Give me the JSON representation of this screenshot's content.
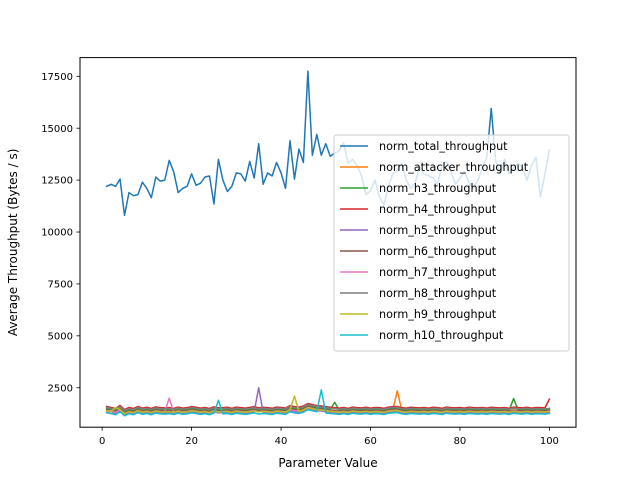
{
  "chart_data": {
    "type": "line",
    "title": "",
    "xlabel": "Parameter Value",
    "ylabel": "Average Throughput (Bytes / s)",
    "xlim": [
      -4.95,
      105.95
    ],
    "ylim": [
      600,
      18400
    ],
    "x_ticks": [
      0,
      20,
      40,
      60,
      80,
      100
    ],
    "y_ticks": [
      2500,
      5000,
      7500,
      10000,
      12500,
      15000,
      17500
    ],
    "x_tick_labels": [
      "0",
      "20",
      "40",
      "60",
      "80",
      "100"
    ],
    "y_tick_labels": [
      "2500",
      "5000",
      "7500",
      "10000",
      "12500",
      "15000",
      "17500"
    ],
    "grid": false,
    "legend_position": "center-right",
    "x": [
      1,
      2,
      3,
      4,
      5,
      6,
      7,
      8,
      9,
      10,
      11,
      12,
      13,
      14,
      15,
      16,
      17,
      18,
      19,
      20,
      21,
      22,
      23,
      24,
      25,
      26,
      27,
      28,
      29,
      30,
      31,
      32,
      33,
      34,
      35,
      36,
      37,
      38,
      39,
      40,
      41,
      42,
      43,
      44,
      45,
      46,
      47,
      48,
      49,
      50,
      51,
      52,
      53,
      54,
      55,
      56,
      57,
      58,
      59,
      60,
      61,
      62,
      63,
      64,
      65,
      66,
      67,
      68,
      69,
      70,
      71,
      72,
      73,
      74,
      75,
      76,
      77,
      78,
      79,
      80,
      81,
      82,
      83,
      84,
      85,
      86,
      87,
      88,
      89,
      90,
      91,
      92,
      93,
      94,
      95,
      96,
      97,
      98,
      99,
      100
    ],
    "series": [
      {
        "name": "norm_total_throughput",
        "color": "#1f77b4",
        "values": [
          12200,
          12300,
          12200,
          12550,
          10800,
          11900,
          11750,
          11800,
          12400,
          12100,
          11650,
          12650,
          12450,
          12500,
          13450,
          12900,
          11900,
          12100,
          12200,
          12800,
          12250,
          12350,
          12650,
          12700,
          11350,
          13500,
          12500,
          11950,
          12200,
          12850,
          12800,
          12450,
          13400,
          12600,
          14250,
          12300,
          12850,
          12700,
          13350,
          12850,
          12100,
          14400,
          12550,
          14000,
          13350,
          17750,
          13700,
          14700,
          13700,
          14250,
          13650,
          13800,
          13900,
          14300,
          13300,
          13500,
          13200,
          12700,
          11800,
          12000,
          12500,
          11700,
          11300,
          12200,
          12800,
          12950,
          13300,
          12500,
          12100,
          12400,
          13100,
          12800,
          12700,
          12600,
          12300,
          13200,
          13400,
          12900,
          12300,
          12600,
          12900,
          12400,
          12100,
          12500,
          13100,
          13600,
          15950,
          13400,
          12800,
          13500,
          12800,
          13100,
          13300,
          13100,
          12500,
          13200,
          13600,
          11700,
          12800,
          13950
        ]
      },
      {
        "name": "norm_attacker_throughput",
        "color": "#ff7f0e",
        "values": [
          1400,
          1450,
          1350,
          1500,
          1300,
          1400,
          1350,
          1450,
          1380,
          1420,
          1360,
          1440,
          1400,
          1390,
          1410,
          1370,
          1430,
          1380,
          1400,
          1450,
          1420,
          1380,
          1410,
          1360,
          1440,
          1390,
          1400,
          1420,
          1370,
          1430,
          1400,
          1380,
          1410,
          1450,
          1390,
          1420,
          1400,
          1370,
          1430,
          1410,
          1380,
          1500,
          1450,
          1420,
          1480,
          1600,
          1550,
          1500,
          1480,
          1450,
          1420,
          1400,
          1380,
          1410,
          1370,
          1430,
          1400,
          1390,
          1420,
          1380,
          1410,
          1400,
          1370,
          1430,
          1450,
          2350,
          1400,
          1380,
          1420,
          1400,
          1390,
          1410,
          1380,
          1420,
          1400,
          1370,
          1430,
          1400,
          1390,
          1410,
          1380,
          1420,
          1400,
          1390,
          1410,
          1380,
          1420,
          1400,
          1390,
          1410,
          1370,
          1430,
          1400,
          1390,
          1420,
          1380,
          1410,
          1400,
          1390,
          1420
        ]
      },
      {
        "name": "norm_h3_throughput",
        "color": "#2ca02c",
        "values": [
          1500,
          1450,
          1400,
          1550,
          1350,
          1450,
          1400,
          1500,
          1420,
          1460,
          1400,
          1480,
          1440,
          1430,
          1450,
          1410,
          1470,
          1420,
          1440,
          1490,
          1460,
          1420,
          1450,
          1400,
          1480,
          1430,
          1440,
          1460,
          1410,
          1470,
          1440,
          1420,
          1450,
          1490,
          1430,
          1460,
          1440,
          1410,
          1470,
          1450,
          1420,
          1540,
          1490,
          1460,
          1520,
          1640,
          1590,
          1540,
          1520,
          1490,
          1460,
          1800,
          1420,
          1450,
          1410,
          1470,
          1440,
          1430,
          1460,
          1420,
          1450,
          1440,
          1410,
          1470,
          1490,
          1500,
          1440,
          1420,
          1460,
          1440,
          1430,
          1450,
          1420,
          1460,
          1440,
          1410,
          1470,
          1440,
          1430,
          1450,
          1420,
          1460,
          1440,
          1430,
          1450,
          1420,
          1460,
          1440,
          1430,
          1450,
          1410,
          1980,
          1440,
          1430,
          1460,
          1420,
          1450,
          1440,
          1430,
          1460
        ]
      },
      {
        "name": "norm_h4_throughput",
        "color": "#d62728",
        "values": [
          1600,
          1550,
          1500,
          1650,
          1450,
          1550,
          1500,
          1600,
          1520,
          1560,
          1500,
          1580,
          1540,
          1530,
          1550,
          1510,
          1570,
          1520,
          1540,
          1590,
          1560,
          1520,
          1550,
          1500,
          1580,
          1530,
          1540,
          1560,
          1510,
          1570,
          1540,
          1520,
          1550,
          1590,
          1530,
          1560,
          1540,
          1510,
          1570,
          1550,
          1520,
          1640,
          1590,
          1560,
          1620,
          1740,
          1690,
          1640,
          1620,
          1590,
          1560,
          1540,
          1520,
          1550,
          1510,
          1570,
          1540,
          1530,
          1560,
          1520,
          1550,
          1540,
          1510,
          1570,
          1590,
          1600,
          1540,
          1520,
          1560,
          1540,
          1530,
          1550,
          1520,
          1560,
          1540,
          1510,
          1570,
          1540,
          1530,
          1550,
          1520,
          1560,
          1540,
          1530,
          1550,
          1520,
          1560,
          1540,
          1530,
          1550,
          1510,
          1570,
          1540,
          1530,
          1560,
          1520,
          1550,
          1540,
          1530,
          1950
        ]
      },
      {
        "name": "norm_h5_throughput",
        "color": "#9467bd",
        "values": [
          1300,
          1350,
          1250,
          1400,
          1200,
          1300,
          1250,
          1350,
          1280,
          1320,
          1260,
          1340,
          1300,
          1290,
          1310,
          1270,
          1330,
          1280,
          1300,
          1350,
          1320,
          1280,
          1310,
          1260,
          1340,
          1290,
          1300,
          1320,
          1270,
          1330,
          1300,
          1280,
          1310,
          1350,
          2500,
          1320,
          1300,
          1270,
          1330,
          1310,
          1280,
          1400,
          1350,
          1320,
          1380,
          1500,
          1450,
          1400,
          1380,
          1350,
          1320,
          1300,
          1280,
          1310,
          1270,
          1330,
          1300,
          1290,
          1320,
          1280,
          1310,
          1300,
          1270,
          1330,
          1350,
          1360,
          1300,
          1280,
          1320,
          1300,
          1290,
          1310,
          1280,
          1320,
          1300,
          1270,
          1330,
          1300,
          1290,
          1310,
          1280,
          1320,
          1300,
          1290,
          1310,
          1280,
          1320,
          1300,
          1290,
          1310,
          1270,
          1330,
          1300,
          1290,
          1320,
          1280,
          1310,
          1300,
          1290,
          1320
        ]
      },
      {
        "name": "norm_h6_throughput",
        "color": "#8c564b",
        "values": [
          1450,
          1400,
          1350,
          1500,
          1300,
          1400,
          1350,
          1450,
          1370,
          1410,
          1350,
          1430,
          1390,
          1380,
          1400,
          1360,
          1420,
          1370,
          1390,
          1440,
          1410,
          1370,
          1400,
          1350,
          1430,
          1380,
          1390,
          1410,
          1360,
          1420,
          1390,
          1370,
          1400,
          1440,
          1380,
          1410,
          1390,
          1360,
          1420,
          1400,
          1370,
          1490,
          1440,
          1410,
          1470,
          1590,
          1540,
          1490,
          1470,
          1440,
          1410,
          1390,
          1370,
          1400,
          1360,
          1420,
          1390,
          1380,
          1410,
          1370,
          1400,
          1390,
          1360,
          1420,
          1440,
          1450,
          1390,
          1370,
          1410,
          1390,
          1380,
          1400,
          1370,
          1410,
          1390,
          1360,
          1420,
          1390,
          1380,
          1400,
          1370,
          1410,
          1390,
          1380,
          1400,
          1370,
          1410,
          1390,
          1380,
          1400,
          1360,
          1420,
          1390,
          1380,
          1410,
          1370,
          1400,
          1390,
          1380,
          1410
        ]
      },
      {
        "name": "norm_h7_throughput",
        "color": "#e377c2",
        "values": [
          1350,
          1400,
          1300,
          1450,
          1250,
          1350,
          1300,
          1400,
          1330,
          1370,
          1310,
          1390,
          1350,
          1340,
          2000,
          1320,
          1380,
          1330,
          1350,
          1400,
          1370,
          1330,
          1360,
          1310,
          1390,
          1340,
          1350,
          1370,
          1320,
          1380,
          1350,
          1330,
          1360,
          1400,
          1340,
          1370,
          1350,
          1320,
          1380,
          1360,
          1330,
          1450,
          1400,
          1370,
          1430,
          1550,
          1500,
          1450,
          1430,
          1400,
          1370,
          1350,
          1330,
          1360,
          1320,
          1380,
          1350,
          1340,
          1370,
          1330,
          1360,
          1350,
          1320,
          1380,
          1400,
          1410,
          1350,
          1330,
          1370,
          1350,
          1340,
          1360,
          1330,
          1370,
          1350,
          1320,
          1380,
          1350,
          1340,
          1360,
          1330,
          1370,
          1350,
          1340,
          1360,
          1330,
          1370,
          1350,
          1340,
          1360,
          1320,
          1380,
          1350,
          1340,
          1370,
          1330,
          1360,
          1350,
          1340,
          1370
        ]
      },
      {
        "name": "norm_h8_throughput",
        "color": "#7f7f7f",
        "values": [
          1550,
          1500,
          1450,
          1600,
          1400,
          1500,
          1450,
          1550,
          1470,
          1510,
          1450,
          1530,
          1490,
          1480,
          1500,
          1460,
          1520,
          1470,
          1490,
          1540,
          1510,
          1470,
          1500,
          1450,
          1530,
          1480,
          1490,
          1510,
          1460,
          1520,
          1490,
          1470,
          1500,
          1540,
          1480,
          1510,
          1490,
          1460,
          1520,
          1500,
          1470,
          1590,
          1540,
          1510,
          1570,
          1690,
          1640,
          1590,
          1570,
          1540,
          1510,
          1490,
          1470,
          1500,
          1460,
          1520,
          1490,
          1480,
          1510,
          1470,
          1500,
          1490,
          1460,
          1520,
          1540,
          1550,
          1490,
          1470,
          1510,
          1490,
          1480,
          1500,
          1470,
          1510,
          1490,
          1460,
          1520,
          1490,
          1480,
          1500,
          1470,
          1510,
          1490,
          1480,
          1500,
          1470,
          1510,
          1490,
          1480,
          1500,
          1460,
          1520,
          1490,
          1480,
          1510,
          1470,
          1500,
          1490,
          1480,
          1510
        ]
      },
      {
        "name": "norm_h9_throughput",
        "color": "#bcbd22",
        "values": [
          1400,
          1350,
          1550,
          1450,
          1250,
          1350,
          1300,
          1400,
          1320,
          1360,
          1300,
          1380,
          1340,
          1330,
          1350,
          1310,
          1370,
          1320,
          1340,
          1390,
          1360,
          1320,
          1350,
          1300,
          1380,
          1330,
          1340,
          1360,
          1310,
          1370,
          1340,
          1320,
          1350,
          1390,
          1330,
          1360,
          1340,
          1310,
          1370,
          1350,
          1320,
          1440,
          2100,
          1360,
          1420,
          1540,
          1490,
          1440,
          1420,
          1390,
          1360,
          1340,
          1320,
          1350,
          1310,
          1370,
          1340,
          1330,
          1360,
          1320,
          1350,
          1340,
          1310,
          1370,
          1390,
          1400,
          1340,
          1320,
          1360,
          1340,
          1330,
          1350,
          1320,
          1360,
          1340,
          1310,
          1370,
          1340,
          1330,
          1350,
          1320,
          1360,
          1340,
          1330,
          1350,
          1320,
          1360,
          1340,
          1330,
          1350,
          1310,
          1370,
          1340,
          1330,
          1360,
          1320,
          1350,
          1340,
          1330,
          1360
        ]
      },
      {
        "name": "norm_h10_throughput",
        "color": "#17becf",
        "values": [
          1300,
          1250,
          1200,
          1350,
          1150,
          1250,
          1200,
          1300,
          1220,
          1260,
          1200,
          1280,
          1240,
          1230,
          1250,
          1210,
          1270,
          1220,
          1240,
          1290,
          1260,
          1220,
          1250,
          1200,
          1280,
          1900,
          1240,
          1260,
          1210,
          1270,
          1240,
          1220,
          1250,
          1290,
          1230,
          1260,
          1240,
          1210,
          1270,
          1250,
          1220,
          1340,
          1290,
          1260,
          1320,
          1440,
          1390,
          1340,
          2400,
          1290,
          1260,
          1240,
          1220,
          1250,
          1210,
          1270,
          1240,
          1230,
          1260,
          1220,
          1250,
          1240,
          1210,
          1270,
          1290,
          1300,
          1240,
          1220,
          1260,
          1240,
          1230,
          1250,
          1220,
          1260,
          1240,
          1210,
          1270,
          1240,
          1230,
          1250,
          1220,
          1260,
          1240,
          1230,
          1250,
          1220,
          1260,
          1240,
          1230,
          1250,
          1210,
          1270,
          1240,
          1230,
          1260,
          1220,
          1250,
          1240,
          1230,
          1260
        ]
      }
    ]
  }
}
